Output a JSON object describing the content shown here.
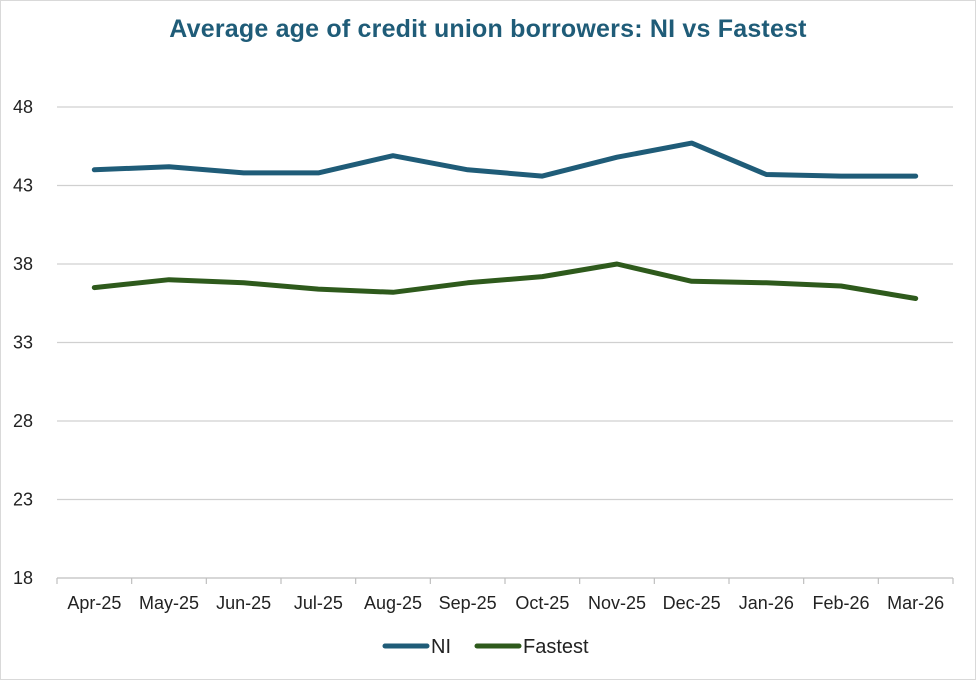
{
  "chart_data": {
    "type": "line",
    "title": "Average age of credit union borrowers: NI vs Fastest",
    "xlabel": "",
    "ylabel": "",
    "categories": [
      "Apr-25",
      "May-25",
      "Jun-25",
      "Jul-25",
      "Aug-25",
      "Sep-25",
      "Oct-25",
      "Nov-25",
      "Dec-25",
      "Jan-26",
      "Feb-26",
      "Mar-26"
    ],
    "y_ticks": [
      "18",
      "23",
      "28",
      "33",
      "38",
      "43",
      "48"
    ],
    "ylim": [
      18,
      48
    ],
    "grid": true,
    "legend_position": "bottom",
    "series": [
      {
        "name": "NI",
        "color": "#1f5c78",
        "values": [
          44.0,
          44.2,
          43.8,
          43.8,
          44.9,
          44.0,
          43.6,
          44.8,
          45.7,
          43.7,
          43.6,
          43.6
        ]
      },
      {
        "name": "Fastest",
        "color": "#2e5a1c",
        "values": [
          36.5,
          37.0,
          36.8,
          36.4,
          36.2,
          36.8,
          37.2,
          38.0,
          36.9,
          36.8,
          36.6,
          35.8
        ]
      }
    ]
  }
}
